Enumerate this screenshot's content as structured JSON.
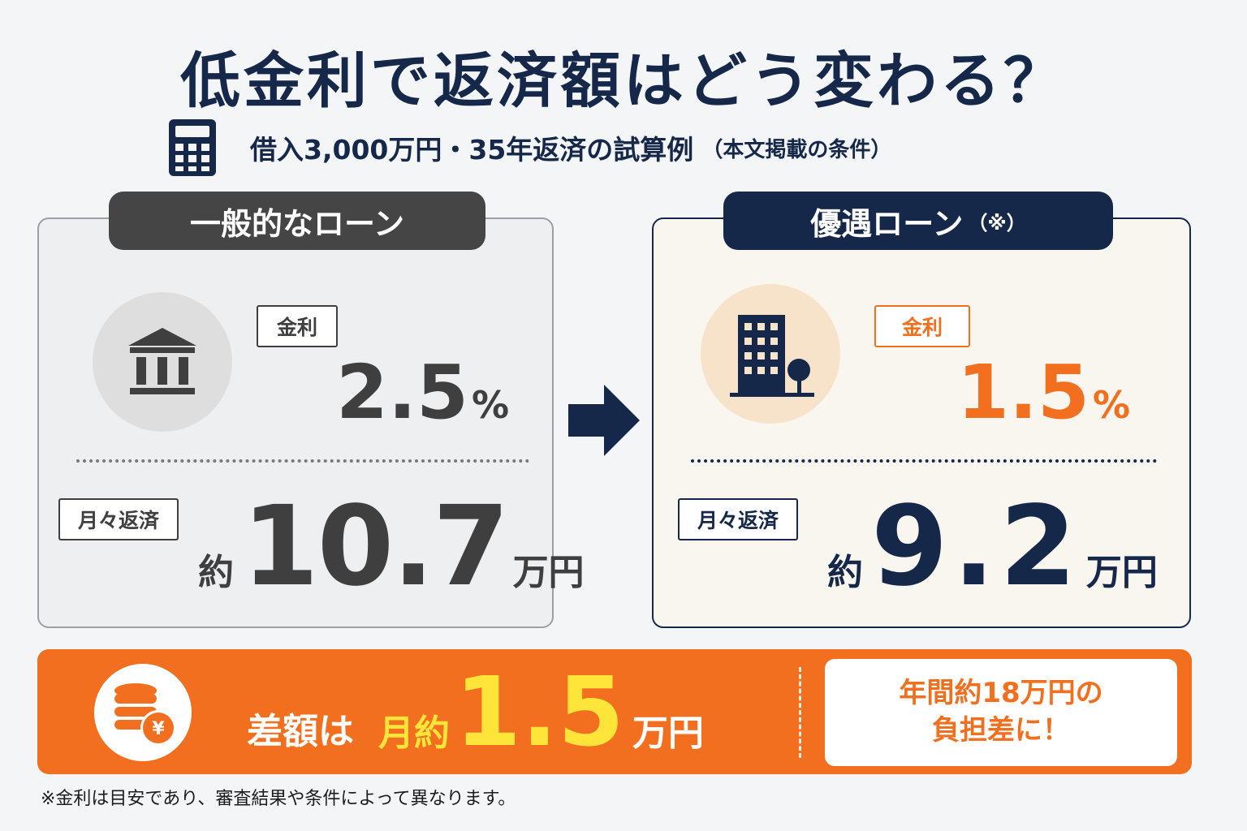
{
  "title": "低金利で返済額はどう変わる？",
  "subtitle": "借入3,000万円・35年返済の試算例",
  "subtitle_note": "（本文掲載の条件）",
  "left_card": {
    "tab": "一般的なローン",
    "icon": "bank-icon",
    "rate_label": "金利",
    "rate_value": "2.5",
    "rate_unit": "%",
    "pay_label": "月々返済",
    "pay_prefix": "約",
    "pay_value": "10.7",
    "pay_unit": "万円"
  },
  "right_card": {
    "tab": "優遇ローン",
    "tab_note": "（※）",
    "icon": "office-building-icon",
    "rate_label": "金利",
    "rate_value": "1.5",
    "rate_unit": "%",
    "pay_label": "月々返済",
    "pay_prefix": "約",
    "pay_value": "9.2",
    "pay_unit": "万円"
  },
  "banner": {
    "icon": "yen-coins-icon",
    "diff_label": "差額は",
    "diff_prefix": "月約",
    "diff_value": "1.5",
    "diff_unit": "万円",
    "callout_line1": "年間約18万円の",
    "callout_line2": "負担差に！"
  },
  "footnote": "※金利は目安であり、審査結果や条件によって異なります。",
  "colors": {
    "navy": "#16284a",
    "orange": "#f26f1f",
    "gray": "#3f3f3f",
    "yellow": "#ffe53a"
  }
}
